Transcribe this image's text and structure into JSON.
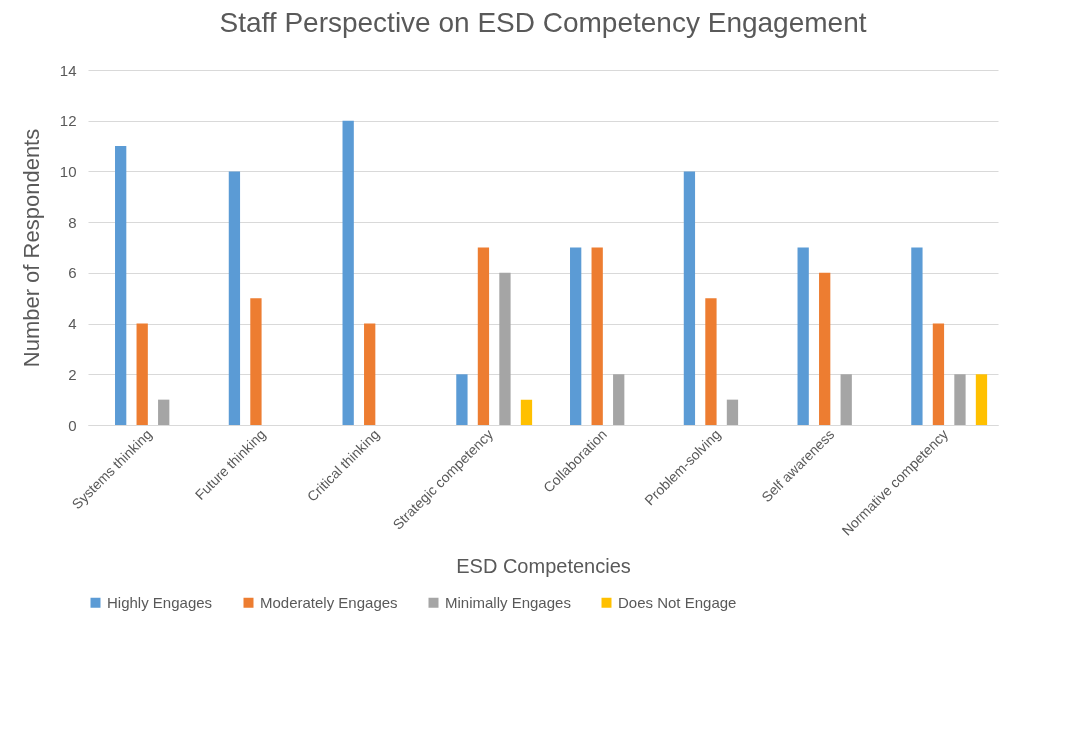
{
  "chart_data": {
    "type": "bar",
    "title": "Staff Perspective on ESD Competency Engagement",
    "xlabel": "ESD Competencies",
    "ylabel": "Number of Respondents",
    "categories": [
      "Systems thinking",
      "Future thinking",
      "Critical thinking",
      "Strategic competency",
      "Collaboration",
      "Problem-solving",
      "Self awareness",
      "Normative competency"
    ],
    "series": [
      {
        "name": "Highly Engages",
        "color": "#5b9bd5",
        "values": [
          11,
          10,
          12,
          2,
          7,
          10,
          7,
          7
        ]
      },
      {
        "name": "Moderately Engages",
        "color": "#ed7d31",
        "values": [
          4,
          5,
          4,
          7,
          7,
          5,
          6,
          4
        ]
      },
      {
        "name": "Minimally Engages",
        "color": "#a5a5a5",
        "values": [
          1,
          0,
          0,
          6,
          2,
          1,
          2,
          2
        ]
      },
      {
        "name": "Does Not Engage",
        "color": "#ffc000",
        "values": [
          0,
          0,
          0,
          1,
          0,
          0,
          0,
          2
        ]
      }
    ],
    "ylim": [
      0,
      14
    ],
    "yticks": [
      0,
      2,
      4,
      6,
      8,
      10,
      12,
      14
    ],
    "grid": "y",
    "legend": "bottom"
  }
}
